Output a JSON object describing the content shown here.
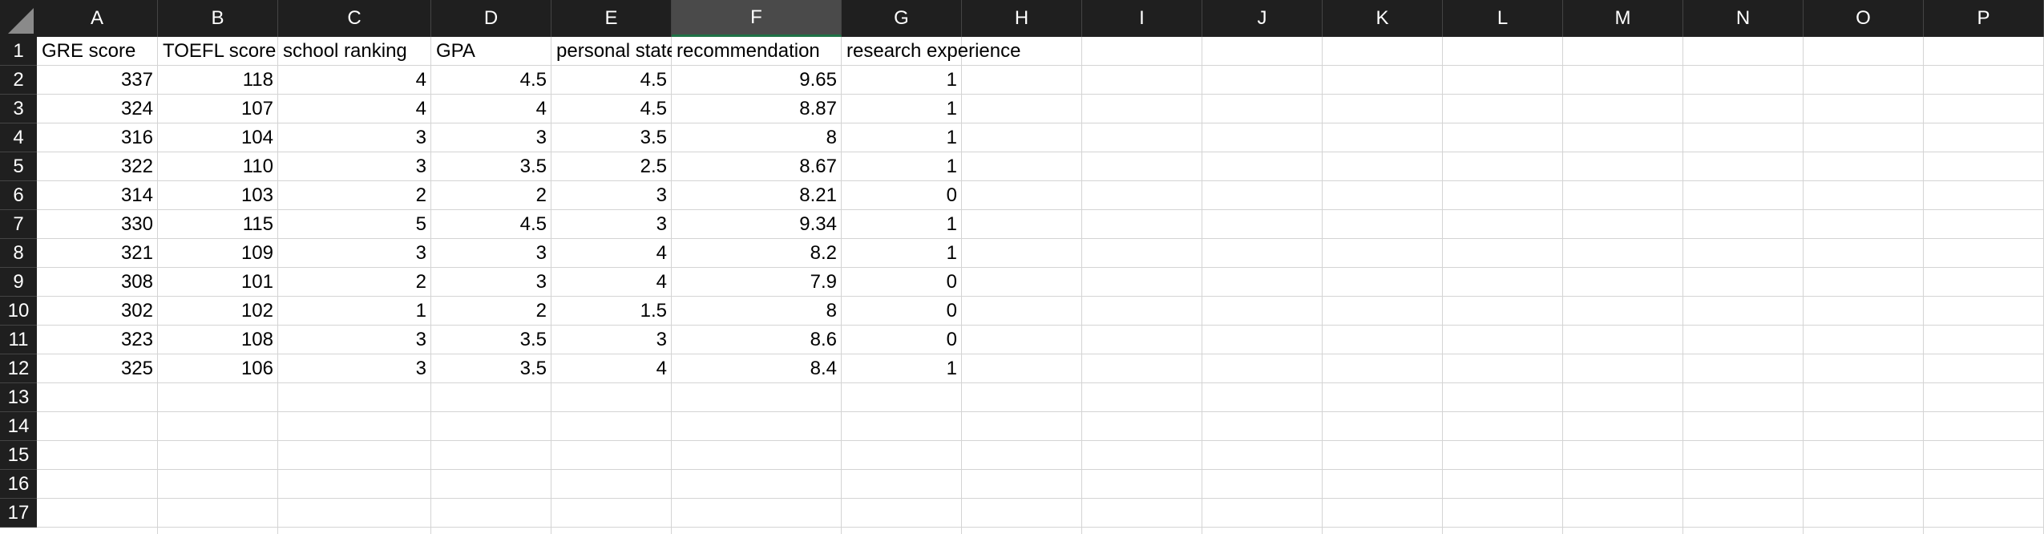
{
  "columns": [
    "A",
    "B",
    "C",
    "D",
    "E",
    "F",
    "G",
    "H",
    "I",
    "J",
    "K",
    "L",
    "M",
    "N",
    "O",
    "P"
  ],
  "selected_column": "F",
  "rows": [
    "1",
    "2",
    "3",
    "4",
    "5",
    "6",
    "7",
    "8",
    "9",
    "10",
    "11",
    "12",
    "13",
    "14",
    "15",
    "16",
    "17"
  ],
  "headers": [
    "GRE score",
    "TOEFL score",
    "school ranking",
    "GPA",
    "personal statement",
    "recommendation",
    "research experience"
  ],
  "data": [
    [
      "337",
      "118",
      "4",
      "4.5",
      "4.5",
      "9.65",
      "1"
    ],
    [
      "324",
      "107",
      "4",
      "4",
      "4.5",
      "8.87",
      "1"
    ],
    [
      "316",
      "104",
      "3",
      "3",
      "3.5",
      "8",
      "1"
    ],
    [
      "322",
      "110",
      "3",
      "3.5",
      "2.5",
      "8.67",
      "1"
    ],
    [
      "314",
      "103",
      "2",
      "2",
      "3",
      "8.21",
      "0"
    ],
    [
      "330",
      "115",
      "5",
      "4.5",
      "3",
      "9.34",
      "1"
    ],
    [
      "321",
      "109",
      "3",
      "3",
      "4",
      "8.2",
      "1"
    ],
    [
      "308",
      "101",
      "2",
      "3",
      "4",
      "7.9",
      "0"
    ],
    [
      "302",
      "102",
      "1",
      "2",
      "1.5",
      "8",
      "0"
    ],
    [
      "323",
      "108",
      "3",
      "3.5",
      "3",
      "8.6",
      "0"
    ],
    [
      "325",
      "106",
      "3",
      "3.5",
      "4",
      "8.4",
      "1"
    ]
  ],
  "colors": {
    "header_bg": "#1f1f1f",
    "selected_header_bg": "#4a4a4a",
    "selection_accent": "#1e7145",
    "gridline": "#d4d4d4"
  }
}
